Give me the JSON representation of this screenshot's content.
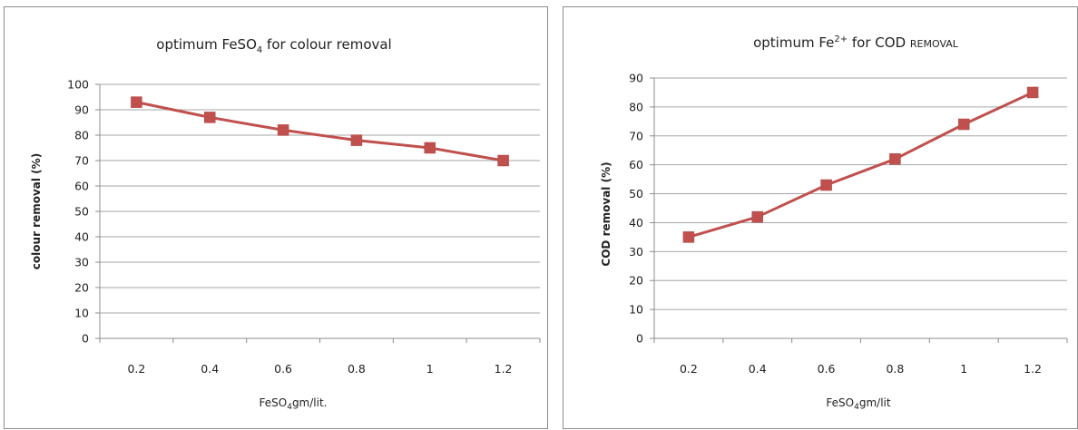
{
  "caption": "",
  "chart_data": [
    {
      "type": "line",
      "title": "optimum FeSO",
      "title_sub": "4",
      "title_tail": " for colour removal",
      "xlabel": "FeSO",
      "xlabel_sub": "4",
      "xlabel_tail": "gm/lit.",
      "ylabel": "colour removal (%)",
      "categories": [
        "0.2",
        "0.4",
        "0.6",
        "0.8",
        "1",
        "1.2"
      ],
      "series": [
        {
          "values": [
            93,
            87,
            82,
            78,
            75,
            70
          ]
        }
      ],
      "ylim": [
        0,
        100
      ],
      "ystep": 10,
      "grid": true,
      "color": "#c0504d"
    },
    {
      "type": "line",
      "title": "optimum Fe",
      "title_sup": "2+",
      "title_tail": " for COD ",
      "title_small": "REMOVAL",
      "xlabel": "FeSO",
      "xlabel_sub": "4",
      "xlabel_tail": "gm/lit",
      "ylabel": "COD removal (%)",
      "categories": [
        "0.2",
        "0.4",
        "0.6",
        "0.8",
        "1",
        "1.2"
      ],
      "series": [
        {
          "values": [
            35,
            42,
            53,
            62,
            74,
            85
          ]
        }
      ],
      "ylim": [
        0,
        90
      ],
      "ystep": 10,
      "grid": true,
      "color": "#c0504d"
    }
  ]
}
